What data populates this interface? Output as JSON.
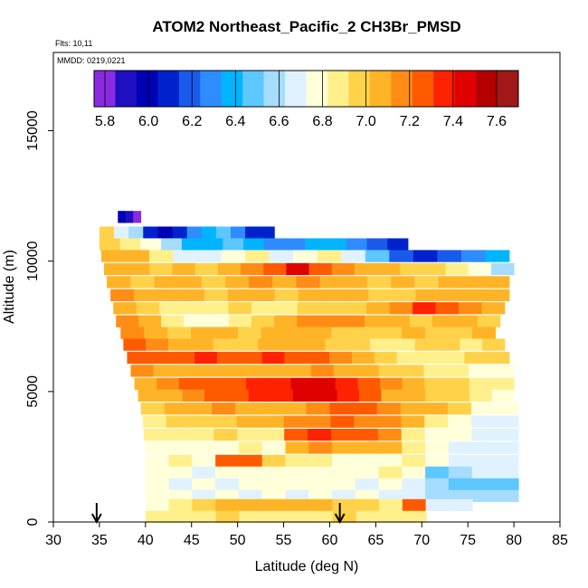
{
  "chart_data": {
    "type": "heatmap",
    "title": "ATOM2 Northeast_Pacific_2 CH3Br_PMSD",
    "flights_label": "Flts: 10,11",
    "dates_label": "MMDD: 0219,0221",
    "xlabel": "Latitude (deg N)",
    "ylabel": "Altitude (m)",
    "xlim": [
      30,
      85
    ],
    "ylim": [
      0,
      18000
    ],
    "x_ticks": [
      "30",
      "35",
      "40",
      "45",
      "50",
      "55",
      "60",
      "65",
      "70",
      "75",
      "80",
      "85"
    ],
    "y_ticks": [
      "0",
      "5000",
      "10000",
      "15000"
    ],
    "colorbar": {
      "range": [
        5.75,
        7.7
      ],
      "ticks": [
        "5.8",
        "6.0",
        "6.2",
        "6.4",
        "6.6",
        "6.8",
        "7.0",
        "7.2",
        "7.4",
        "7.6"
      ],
      "colors": [
        "#8a2be2",
        "#1e0fbf",
        "#0000b4",
        "#0022cc",
        "#1a5aeb",
        "#2e8cff",
        "#00b4ff",
        "#5cc8ff",
        "#a5dcff",
        "#e0f2ff",
        "#ffffd9",
        "#fff08c",
        "#ffd24a",
        "#ffb428",
        "#ff8c14",
        "#ff5a00",
        "#ff2200",
        "#e00000",
        "#b40000",
        "#a01818"
      ]
    },
    "arrows_at_latitude": [
      34.7,
      61.1
    ],
    "layers": [
      {
        "alt": 11700,
        "lat_start": 37.0,
        "lat_end": 39.5,
        "values": [
          6.0,
          5.9,
          5.8
        ]
      },
      {
        "alt": 11100,
        "lat_start": 35.0,
        "lat_end": 54.0,
        "values": [
          7.0,
          6.7,
          6.6,
          6.1,
          6.0,
          6.05,
          6.3,
          6.4,
          6.5,
          6.3,
          6.1,
          6.05
        ]
      },
      {
        "alt": 10650,
        "lat_start": 35.0,
        "lat_end": 68.5,
        "values": [
          7.0,
          6.85,
          6.75,
          6.6,
          6.4,
          6.4,
          6.45,
          6.35,
          6.3,
          6.3,
          6.35,
          6.4,
          6.3,
          6.2,
          6.1
        ]
      },
      {
        "alt": 10200,
        "lat_start": 35.2,
        "lat_end": 79.5,
        "values": [
          7.1,
          7.05,
          6.85,
          6.7,
          6.65,
          6.75,
          6.85,
          6.7,
          6.8,
          6.85,
          6.7,
          6.45,
          6.2,
          6.05,
          6.2,
          6.3,
          6.35
        ]
      },
      {
        "alt": 9700,
        "lat_start": 35.5,
        "lat_end": 80.0,
        "values": [
          7.1,
          7.05,
          7.0,
          7.05,
          7.0,
          7.1,
          7.15,
          7.3,
          7.5,
          7.3,
          7.2,
          7.1,
          7.05,
          7.0,
          6.95,
          6.85,
          6.75,
          6.6
        ]
      },
      {
        "alt": 9200,
        "lat_start": 35.8,
        "lat_end": 79.5,
        "values": [
          7.1,
          7.0,
          7.05,
          7.1,
          7.0,
          7.05,
          7.15,
          7.1,
          7.2,
          7.1,
          7.05,
          7.0,
          7.05,
          7.0,
          7.05,
          7.1,
          7.1
        ]
      },
      {
        "alt": 8700,
        "lat_start": 36.2,
        "lat_end": 79.5,
        "values": [
          7.15,
          7.1,
          7.05,
          7.1,
          7.0,
          7.05,
          7.1,
          7.0,
          7.05,
          7.1,
          7.05,
          7.0,
          7.0,
          7.05,
          7.05,
          7.1,
          7.1
        ]
      },
      {
        "alt": 8200,
        "lat_start": 36.5,
        "lat_end": 79.0,
        "values": [
          7.1,
          6.95,
          6.9,
          6.85,
          6.9,
          6.95,
          6.85,
          6.9,
          7.0,
          6.95,
          7.0,
          7.1,
          7.2,
          7.35,
          7.3,
          7.15,
          7.05
        ]
      },
      {
        "alt": 7700,
        "lat_start": 36.8,
        "lat_end": 78.5,
        "values": [
          7.15,
          7.05,
          6.85,
          6.75,
          6.8,
          6.9,
          6.95,
          7.05,
          7.15,
          7.2,
          7.15,
          7.1,
          7.05,
          7.0,
          7.05,
          7.05,
          7.0
        ]
      },
      {
        "alt": 7250,
        "lat_start": 37.3,
        "lat_end": 78.0,
        "values": [
          7.2,
          7.1,
          7.0,
          7.05,
          7.05,
          7.0,
          7.05,
          7.1,
          7.05,
          7.0,
          6.95,
          7.0,
          7.05,
          7.0,
          7.0,
          7.05
        ]
      },
      {
        "alt": 6800,
        "lat_start": 37.6,
        "lat_end": 79.0,
        "values": [
          7.25,
          7.2,
          7.1,
          7.05,
          7.0,
          7.0,
          7.05,
          7.1,
          7.05,
          7.0,
          6.95,
          6.85,
          6.9,
          7.0,
          6.95,
          6.9,
          7.0
        ]
      },
      {
        "alt": 6300,
        "lat_start": 38.0,
        "lat_end": 79.5,
        "values": [
          7.3,
          7.3,
          7.3,
          7.35,
          7.3,
          7.3,
          7.35,
          7.3,
          7.25,
          7.2,
          7.1,
          7.0,
          6.85,
          6.9,
          6.85,
          6.95,
          7.0
        ]
      },
      {
        "alt": 5800,
        "lat_start": 38.4,
        "lat_end": 80.0,
        "values": [
          7.2,
          7.1,
          7.05,
          7.05,
          7.1,
          7.05,
          7.1,
          7.1,
          7.15,
          7.1,
          7.05,
          7.0,
          6.95,
          6.9,
          6.85,
          6.8,
          6.75
        ]
      },
      {
        "alt": 5300,
        "lat_start": 38.8,
        "lat_end": 80.0,
        "values": [
          7.1,
          7.15,
          7.25,
          7.3,
          7.3,
          7.35,
          7.4,
          7.45,
          7.5,
          7.4,
          7.3,
          7.15,
          7.05,
          7.0,
          6.95,
          6.9,
          6.85
        ]
      },
      {
        "alt": 4850,
        "lat_start": 39.2,
        "lat_end": 80.0,
        "values": [
          7.05,
          7.1,
          7.2,
          7.25,
          7.3,
          7.35,
          7.4,
          7.5,
          7.5,
          7.35,
          7.25,
          7.1,
          7.05,
          7.0,
          6.95,
          6.9,
          6.8
        ]
      },
      {
        "alt": 4350,
        "lat_start": 39.5,
        "lat_end": 80.5,
        "values": [
          6.95,
          7.05,
          7.1,
          7.15,
          7.1,
          7.05,
          7.1,
          7.2,
          7.3,
          7.25,
          7.2,
          7.1,
          7.05,
          6.95,
          6.8,
          6.75
        ]
      },
      {
        "alt": 3850,
        "lat_start": 39.7,
        "lat_end": 80.5,
        "values": [
          6.9,
          6.95,
          7.0,
          7.0,
          7.05,
          7.1,
          7.15,
          7.2,
          7.25,
          7.2,
          7.15,
          7.05,
          6.85,
          6.75,
          6.7,
          6.7
        ]
      },
      {
        "alt": 3350,
        "lat_start": 39.8,
        "lat_end": 80.5,
        "values": [
          6.85,
          6.85,
          6.9,
          6.95,
          6.85,
          6.9,
          7.3,
          7.35,
          7.3,
          7.25,
          7.15,
          6.85,
          6.8,
          6.75,
          6.7,
          6.7
        ]
      },
      {
        "alt": 2850,
        "lat_start": 40.0,
        "lat_end": 80.5,
        "values": [
          6.8,
          6.75,
          6.8,
          6.8,
          6.85,
          6.8,
          7.05,
          7.15,
          7.1,
          7.1,
          7.05,
          6.85,
          6.75,
          6.7,
          6.7,
          6.7
        ]
      },
      {
        "alt": 2350,
        "lat_start": 40.0,
        "lat_end": 80.5,
        "values": [
          6.8,
          6.85,
          6.8,
          7.25,
          7.3,
          6.95,
          6.9,
          6.85,
          6.8,
          6.8,
          6.8,
          6.85,
          6.75,
          6.7,
          6.65,
          6.65
        ]
      },
      {
        "alt": 1900,
        "lat_start": 40.0,
        "lat_end": 80.5,
        "values": [
          6.8,
          6.75,
          6.7,
          6.75,
          6.8,
          6.75,
          6.8,
          6.8,
          6.75,
          6.8,
          6.85,
          6.8,
          6.5,
          6.6,
          6.65,
          6.7
        ]
      },
      {
        "alt": 1450,
        "lat_start": 40.0,
        "lat_end": 80.5,
        "values": [
          6.75,
          6.7,
          6.75,
          6.7,
          6.75,
          6.8,
          6.75,
          6.8,
          6.75,
          6.7,
          6.75,
          6.7,
          6.55,
          6.5,
          6.5,
          6.5
        ]
      },
      {
        "alt": 1000,
        "lat_start": 40.0,
        "lat_end": 80.5,
        "values": [
          6.8,
          6.75,
          6.7,
          6.75,
          6.7,
          6.75,
          6.7,
          6.75,
          6.7,
          6.75,
          6.7,
          6.65,
          6.6,
          6.6,
          6.55,
          6.55
        ]
      },
      {
        "alt": 650,
        "lat_start": 40.0,
        "lat_end": 75.5,
        "values": [
          6.8,
          6.9,
          7.0,
          7.05,
          7.1,
          7.05,
          7.05,
          7.05,
          7.0,
          7.0,
          6.85,
          7.25,
          6.7,
          6.7
        ]
      },
      {
        "alt": 200,
        "lat_start": 40.0,
        "lat_end": 70.5,
        "values": [
          6.85,
          6.9,
          6.9,
          6.95,
          6.9,
          6.9,
          6.85,
          6.9,
          6.95,
          6.9,
          6.9,
          6.9
        ]
      }
    ]
  }
}
